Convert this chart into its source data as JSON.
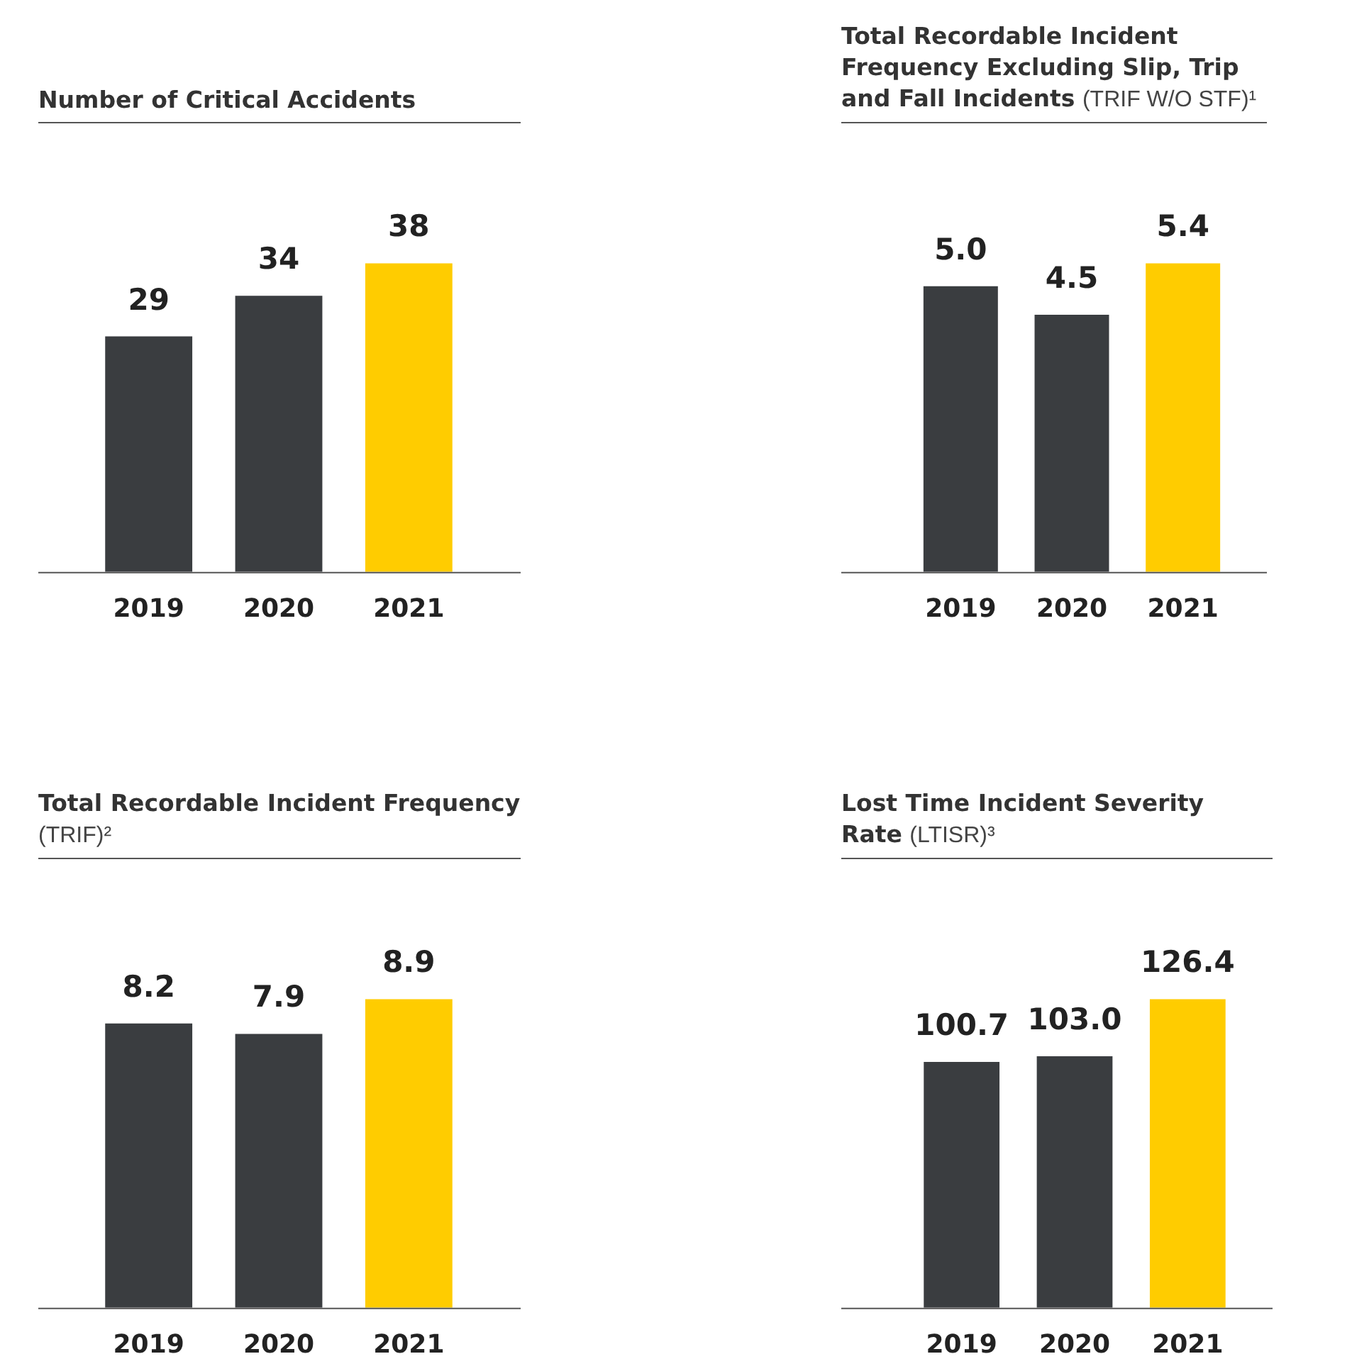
{
  "chart_data": [
    {
      "type": "bar",
      "title": "Number of Critical Accidents",
      "categories": [
        "2019",
        "2020",
        "2021"
      ],
      "values": [
        29,
        34,
        38
      ],
      "colors": [
        "#3a3d40",
        "#3a3d40",
        "#ffcc00"
      ],
      "data_labels": true
    },
    {
      "type": "bar",
      "title": "Total Recordable Incident Frequency Excluding Slip, Trip and Fall Incidents",
      "subtitle": "(TRIF W/O STF)¹",
      "categories": [
        "2019",
        "2020",
        "2021"
      ],
      "values": [
        5.0,
        4.5,
        5.4
      ],
      "value_labels": [
        "5.0",
        "4.5",
        "5.4"
      ],
      "colors": [
        "#3a3d40",
        "#3a3d40",
        "#ffcc00"
      ]
    },
    {
      "type": "bar",
      "title": "Total Recordable Incident Frequency",
      "subtitle": "(TRIF)²",
      "categories": [
        "2019",
        "2020",
        "2021"
      ],
      "values": [
        8.2,
        7.9,
        8.9
      ],
      "colors": [
        "#3a3d40",
        "#3a3d40",
        "#ffcc00"
      ],
      "data_labels": true
    },
    {
      "type": "bar",
      "title": "Lost Time Incident Severity Rate",
      "subtitle": "(LTISR)³",
      "categories": [
        "2019",
        "2020",
        "2021"
      ],
      "values": [
        100.7,
        103.0,
        126.4
      ],
      "value_labels": [
        "100.7",
        "103.0",
        "126.4"
      ],
      "colors": [
        "#3a3d40",
        "#3a3d40",
        "#ffcc00"
      ]
    }
  ]
}
